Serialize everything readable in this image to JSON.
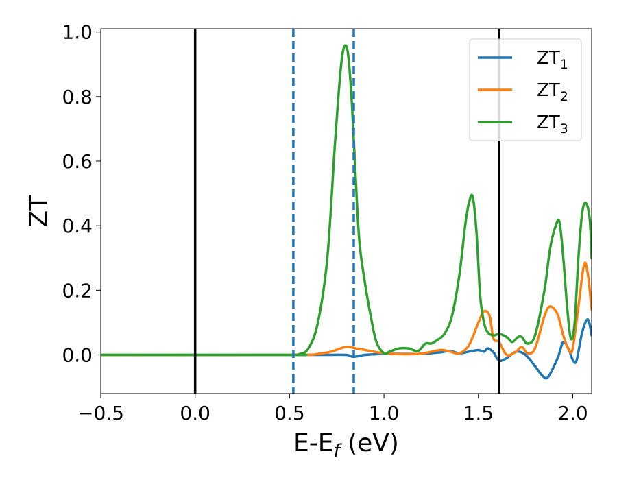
{
  "chart_data": {
    "type": "line",
    "title": "",
    "xlabel": {
      "main": "E-E",
      "sub": "f",
      "tail": " (eV)"
    },
    "ylabel": "ZT",
    "xlim": [
      -0.5,
      2.1
    ],
    "ylim": [
      -0.12,
      1.01
    ],
    "xticks": [
      -0.5,
      0.0,
      0.5,
      1.0,
      1.5,
      2.0
    ],
    "xtick_labels": [
      "−0.5",
      "0.0",
      "0.5",
      "1.0",
      "1.5",
      "2.0"
    ],
    "yticks": [
      0.0,
      0.2,
      0.4,
      0.6,
      0.8,
      1.0
    ],
    "ytick_labels": [
      "0.0",
      "0.2",
      "0.4",
      "0.6",
      "0.8",
      "1.0"
    ],
    "grid": false,
    "legend_position": "top-right",
    "vlines": [
      {
        "x": 0.0,
        "color": "#000000",
        "style": "solid"
      },
      {
        "x": 1.61,
        "color": "#000000",
        "style": "solid"
      },
      {
        "x": 0.52,
        "color": "#1f77b4",
        "style": "dashed"
      },
      {
        "x": 0.84,
        "color": "#1f77b4",
        "style": "dashed"
      }
    ],
    "series": [
      {
        "name": "ZT",
        "sub": "1",
        "color": "#1f77b4",
        "x": [
          -0.5,
          0.5,
          0.7,
          0.8,
          0.84,
          0.9,
          1.0,
          1.1,
          1.2,
          1.3,
          1.35,
          1.4,
          1.45,
          1.5,
          1.53,
          1.55,
          1.58,
          1.61,
          1.65,
          1.7,
          1.75,
          1.8,
          1.84,
          1.87,
          1.92,
          1.95,
          1.98,
          2.0,
          2.02,
          2.05,
          2.08,
          2.1
        ],
        "y": [
          0.0,
          0.0,
          0.0,
          0.0,
          -0.006,
          0.0,
          0.003,
          0.003,
          0.003,
          0.008,
          0.012,
          0.005,
          0.01,
          0.015,
          0.01,
          0.02,
          0.008,
          -0.018,
          -0.01,
          0.01,
          0.0,
          -0.035,
          -0.065,
          -0.068,
          -0.01,
          0.04,
          0.015,
          -0.015,
          -0.018,
          0.07,
          0.11,
          0.06
        ]
      },
      {
        "name": "ZT",
        "sub": "2",
        "color": "#ff7f0e",
        "x": [
          -0.5,
          0.5,
          0.65,
          0.72,
          0.8,
          0.85,
          0.9,
          1.0,
          1.1,
          1.2,
          1.3,
          1.35,
          1.4,
          1.45,
          1.5,
          1.53,
          1.56,
          1.58,
          1.61,
          1.65,
          1.7,
          1.73,
          1.76,
          1.8,
          1.85,
          1.88,
          1.92,
          1.95,
          1.98,
          2.0,
          2.03,
          2.06,
          2.08,
          2.1
        ],
        "y": [
          0.0,
          0.0,
          0.003,
          0.01,
          0.025,
          0.02,
          0.015,
          0.005,
          0.002,
          0.004,
          0.015,
          0.01,
          0.005,
          0.03,
          0.1,
          0.135,
          0.12,
          0.05,
          0.04,
          0.0,
          0.01,
          0.025,
          0.005,
          0.02,
          0.12,
          0.15,
          0.125,
          0.06,
          0.015,
          0.02,
          0.15,
          0.28,
          0.25,
          0.14
        ]
      },
      {
        "name": "ZT",
        "sub": "3",
        "color": "#2ca02c",
        "x": [
          -0.5,
          0.5,
          0.55,
          0.6,
          0.65,
          0.7,
          0.74,
          0.77,
          0.79,
          0.81,
          0.83,
          0.85,
          0.87,
          0.9,
          0.93,
          0.96,
          1.0,
          1.03,
          1.08,
          1.13,
          1.18,
          1.22,
          1.25,
          1.28,
          1.32,
          1.36,
          1.4,
          1.43,
          1.45,
          1.47,
          1.49,
          1.51,
          1.53,
          1.55,
          1.58,
          1.61,
          1.65,
          1.68,
          1.71,
          1.73,
          1.76,
          1.8,
          1.85,
          1.88,
          1.91,
          1.93,
          1.95,
          1.97,
          1.99,
          2.01,
          2.03,
          2.05,
          2.07,
          2.09,
          2.1
        ],
        "y": [
          0.0,
          0.0,
          0.002,
          0.02,
          0.1,
          0.3,
          0.65,
          0.88,
          0.955,
          0.93,
          0.78,
          0.55,
          0.35,
          0.22,
          0.12,
          0.04,
          0.005,
          0.01,
          0.02,
          0.02,
          0.012,
          0.035,
          0.035,
          0.045,
          0.065,
          0.12,
          0.25,
          0.4,
          0.47,
          0.49,
          0.38,
          0.18,
          0.1,
          0.07,
          0.06,
          0.065,
          0.055,
          0.04,
          0.055,
          0.055,
          0.035,
          0.06,
          0.2,
          0.33,
          0.4,
          0.41,
          0.3,
          0.15,
          0.05,
          0.1,
          0.3,
          0.44,
          0.47,
          0.42,
          0.3
        ]
      }
    ]
  }
}
